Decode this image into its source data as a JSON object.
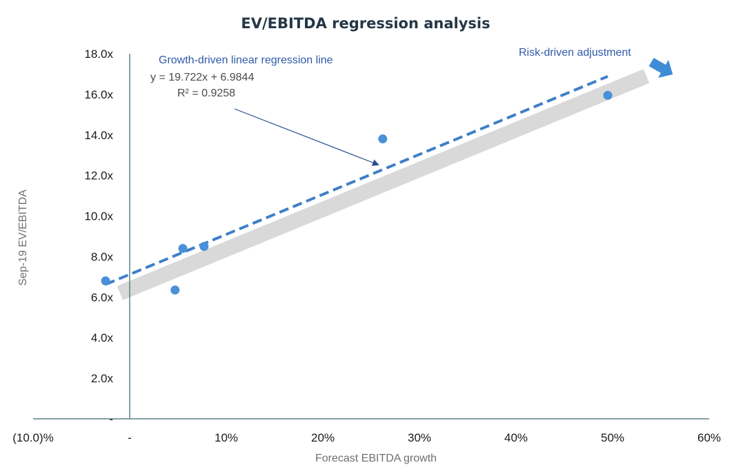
{
  "chart_data": {
    "type": "scatter",
    "title": "EV/EBITDA regression analysis",
    "xlabel": "Forecast EBITDA growth",
    "ylabel": "Sep-19 EV/EBITDA",
    "xlim": [
      -0.1,
      0.6
    ],
    "ylim": [
      0,
      18
    ],
    "x_ticks": [
      {
        "value": -0.1,
        "label": "(10.0)%"
      },
      {
        "value": 0.0,
        "label": "-"
      },
      {
        "value": 0.1,
        "label": "10%"
      },
      {
        "value": 0.2,
        "label": "20%"
      },
      {
        "value": 0.3,
        "label": "30%"
      },
      {
        "value": 0.4,
        "label": "40%"
      },
      {
        "value": 0.5,
        "label": "50%"
      },
      {
        "value": 0.6,
        "label": "60%"
      }
    ],
    "y_ticks": [
      {
        "value": 0,
        "label": "-"
      },
      {
        "value": 2,
        "label": "2.0x"
      },
      {
        "value": 4,
        "label": "4.0x"
      },
      {
        "value": 6,
        "label": "6.0x"
      },
      {
        "value": 8,
        "label": "8.0x"
      },
      {
        "value": 10,
        "label": "10.0x"
      },
      {
        "value": 12,
        "label": "12.0x"
      },
      {
        "value": 14,
        "label": "14.0x"
      },
      {
        "value": 16,
        "label": "16.0x"
      },
      {
        "value": 18,
        "label": "18.0x"
      }
    ],
    "points": [
      {
        "x": -0.025,
        "y": 6.8
      },
      {
        "x": 0.047,
        "y": 6.35
      },
      {
        "x": 0.055,
        "y": 8.4
      },
      {
        "x": 0.077,
        "y": 8.5
      },
      {
        "x": 0.262,
        "y": 13.8
      },
      {
        "x": 0.495,
        "y": 15.95
      }
    ],
    "regression": {
      "slope": 19.722,
      "intercept": 6.9844,
      "x_range": [
        -0.025,
        0.495
      ],
      "equation_label": "y = 19.722x + 6.9844",
      "r2_label": "R² = 0.9258"
    },
    "risk_band": {
      "x_range": [
        -0.01,
        0.535
      ],
      "y_range": [
        6.2,
        16.9
      ]
    },
    "annotations": {
      "regression_line_label": "Growth-driven linear regression line",
      "risk_label": "Risk-driven adjustment"
    },
    "colors": {
      "point": "#4a90d9",
      "regression": "#3f7fc7",
      "band": "#d9d9d9",
      "axis": "#5b7f86",
      "annotation": "#2f5aa8",
      "risk_arrow": "#3f8bd6"
    },
    "grid": false,
    "legend": "none"
  }
}
